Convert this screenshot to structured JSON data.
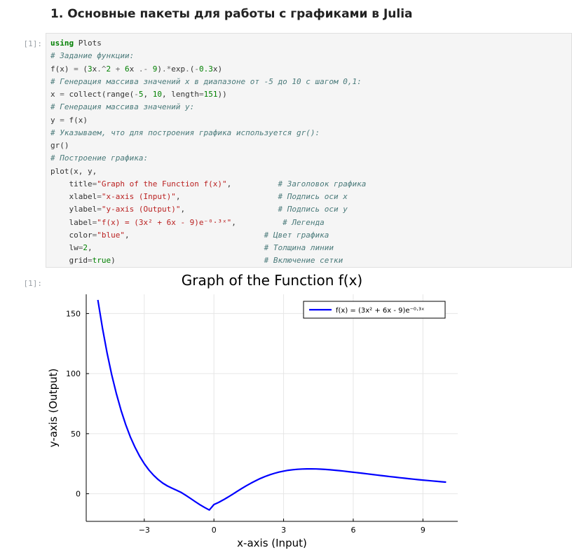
{
  "notebook": {
    "heading": "1. Основные пакеты для работы с графиками в Julia",
    "input_prompt": "[1]:",
    "output_prompt": "[1]:"
  },
  "code_cell": {
    "lines": [
      [
        {
          "t": "kw",
          "v": "using"
        },
        {
          "t": "",
          "v": " Plots"
        }
      ],
      [
        {
          "t": "cm",
          "v": "# Задание функции:"
        }
      ],
      [
        {
          "t": "",
          "v": "f(x) "
        },
        {
          "t": "op",
          "v": "="
        },
        {
          "t": "",
          "v": " ("
        },
        {
          "t": "nm",
          "v": "3"
        },
        {
          "t": "",
          "v": "x"
        },
        {
          "t": "op",
          "v": ".^"
        },
        {
          "t": "nm",
          "v": "2"
        },
        {
          "t": "",
          "v": " "
        },
        {
          "t": "op",
          "v": "+"
        },
        {
          "t": "",
          "v": " "
        },
        {
          "t": "nm",
          "v": "6"
        },
        {
          "t": "",
          "v": "x "
        },
        {
          "t": "op",
          "v": ".-"
        },
        {
          "t": "",
          "v": " "
        },
        {
          "t": "nm",
          "v": "9"
        },
        {
          "t": "",
          "v": ")"
        },
        {
          "t": "op",
          "v": ".*"
        },
        {
          "t": "",
          "v": "exp"
        },
        {
          "t": "op",
          "v": "."
        },
        {
          "t": "",
          "v": "("
        },
        {
          "t": "op",
          "v": "-"
        },
        {
          "t": "nm",
          "v": "0.3"
        },
        {
          "t": "",
          "v": "x)"
        }
      ],
      [
        {
          "t": "cm",
          "v": "# Генерация массива значений x в диапазоне от -5 до 10 с шагом 0,1:"
        }
      ],
      [
        {
          "t": "",
          "v": "x "
        },
        {
          "t": "op",
          "v": "="
        },
        {
          "t": "",
          "v": " collect(range("
        },
        {
          "t": "op",
          "v": "-"
        },
        {
          "t": "nm",
          "v": "5"
        },
        {
          "t": "",
          "v": ", "
        },
        {
          "t": "nm",
          "v": "10"
        },
        {
          "t": "",
          "v": ", length"
        },
        {
          "t": "op",
          "v": "="
        },
        {
          "t": "nm",
          "v": "151"
        },
        {
          "t": "",
          "v": "))"
        }
      ],
      [
        {
          "t": "cm",
          "v": "# Генерация массива значений y:"
        }
      ],
      [
        {
          "t": "",
          "v": "y "
        },
        {
          "t": "op",
          "v": "="
        },
        {
          "t": "",
          "v": " f(x)"
        }
      ],
      [
        {
          "t": "cm",
          "v": "# Указываем, что для построения графика используется gr():"
        }
      ],
      [
        {
          "t": "",
          "v": "gr()"
        }
      ],
      [
        {
          "t": "cm",
          "v": "# Построение графика:"
        }
      ],
      [
        {
          "t": "",
          "v": "plot(x, y,"
        }
      ],
      [
        {
          "t": "",
          "v": "    title"
        },
        {
          "t": "op",
          "v": "="
        },
        {
          "t": "st",
          "v": "\"Graph of the Function f(x)\""
        },
        {
          "t": "",
          "v": ",          "
        },
        {
          "t": "cm",
          "v": "# Заголовок графика"
        }
      ],
      [
        {
          "t": "",
          "v": "    xlabel"
        },
        {
          "t": "op",
          "v": "="
        },
        {
          "t": "st",
          "v": "\"x-axis (Input)\""
        },
        {
          "t": "",
          "v": ",                     "
        },
        {
          "t": "cm",
          "v": "# Подпись оси x"
        }
      ],
      [
        {
          "t": "",
          "v": "    ylabel"
        },
        {
          "t": "op",
          "v": "="
        },
        {
          "t": "st",
          "v": "\"y-axis (Output)\""
        },
        {
          "t": "",
          "v": ",                    "
        },
        {
          "t": "cm",
          "v": "# Подпись оси y"
        }
      ],
      [
        {
          "t": "",
          "v": "    label"
        },
        {
          "t": "op",
          "v": "="
        },
        {
          "t": "st",
          "v": "\"f(x) = (3x² + 6x - 9)e⁻⁰·³ˣ\""
        },
        {
          "t": "",
          "v": ",          "
        },
        {
          "t": "cm",
          "v": "# Легенда"
        }
      ],
      [
        {
          "t": "",
          "v": "    color"
        },
        {
          "t": "op",
          "v": "="
        },
        {
          "t": "st",
          "v": "\"blue\""
        },
        {
          "t": "",
          "v": ",                             "
        },
        {
          "t": "cm",
          "v": "# Цвет графика"
        }
      ],
      [
        {
          "t": "",
          "v": "    lw"
        },
        {
          "t": "op",
          "v": "="
        },
        {
          "t": "nm",
          "v": "2"
        },
        {
          "t": "",
          "v": ",                                     "
        },
        {
          "t": "cm",
          "v": "# Толщина линии"
        }
      ],
      [
        {
          "t": "",
          "v": "    grid"
        },
        {
          "t": "op",
          "v": "="
        },
        {
          "t": "ck",
          "v": "true"
        },
        {
          "t": "",
          "v": ")                                "
        },
        {
          "t": "cm",
          "v": "# Включение сетки"
        }
      ]
    ]
  },
  "chart_data": {
    "type": "line",
    "title": "Graph of the Function f(x)",
    "xlabel": "x-axis (Input)",
    "ylabel": "y-axis (Output)",
    "xlim": [
      -5.5,
      10.5
    ],
    "ylim": [
      -23,
      166
    ],
    "xticks": [
      -3,
      0,
      3,
      6,
      9
    ],
    "yticks": [
      0,
      50,
      100,
      150
    ],
    "grid": true,
    "legend_position": "top-right",
    "series": [
      {
        "name": "f(x) = (3x² + 6x - 9)e⁻⁰·³ˣ",
        "color": "#0000ff",
        "x": [
          -5,
          -4.8,
          -4.6,
          -4.4,
          -4.2,
          -4,
          -3.8,
          -3.6,
          -3.4,
          -3.2,
          -3,
          -2.8,
          -2.6,
          -2.4,
          -2.2,
          -2,
          -1.8,
          -1.6,
          -1.4,
          -1.2,
          -1,
          -0.8,
          -0.6,
          -0.4,
          -0.2,
          0,
          0.2,
          0.4,
          0.6,
          0.8,
          1,
          1.2,
          1.4,
          1.6,
          1.8,
          2,
          2.2,
          2.4,
          2.6,
          2.8,
          3,
          3.2,
          3.4,
          3.6,
          3.8,
          4,
          4.2,
          4.4,
          4.6,
          4.8,
          5,
          5.2,
          5.4,
          5.6,
          5.8,
          6,
          6.2,
          6.4,
          6.6,
          6.8,
          7,
          7.2,
          7.4,
          7.6,
          7.8,
          8,
          8.2,
          8.4,
          8.6,
          8.8,
          9,
          9.2,
          9.4,
          9.6,
          9.8,
          10
        ],
        "y": [
          161.36,
          137.8,
          117.08,
          98.94,
          83.12,
          69.39,
          57.54,
          47.36,
          38.66,
          31.26,
          25.01,
          19.74,
          15.36,
          11.74,
          8.79,
          6.45,
          4.62,
          2.81,
          0.95,
          -1.48,
          -4.05,
          -6.65,
          -9.15,
          -11.47,
          -13.54,
          -9.0,
          -7.26,
          -5.15,
          -2.86,
          -0.47,
          1.97,
          4.37,
          6.68,
          8.85,
          10.86,
          12.68,
          14.31,
          15.73,
          16.96,
          17.99,
          18.83,
          19.5,
          20.01,
          20.37,
          20.6,
          20.71,
          20.71,
          20.62,
          20.45,
          20.22,
          19.92,
          19.58,
          19.21,
          18.8,
          18.37,
          17.92,
          17.46,
          17.0,
          16.53,
          16.06,
          15.59,
          15.13,
          14.67,
          14.22,
          13.78,
          13.35,
          12.93,
          12.52,
          12.12,
          11.73,
          11.36,
          11.0,
          10.65,
          10.31,
          9.98,
          9.67
        ]
      }
    ]
  }
}
